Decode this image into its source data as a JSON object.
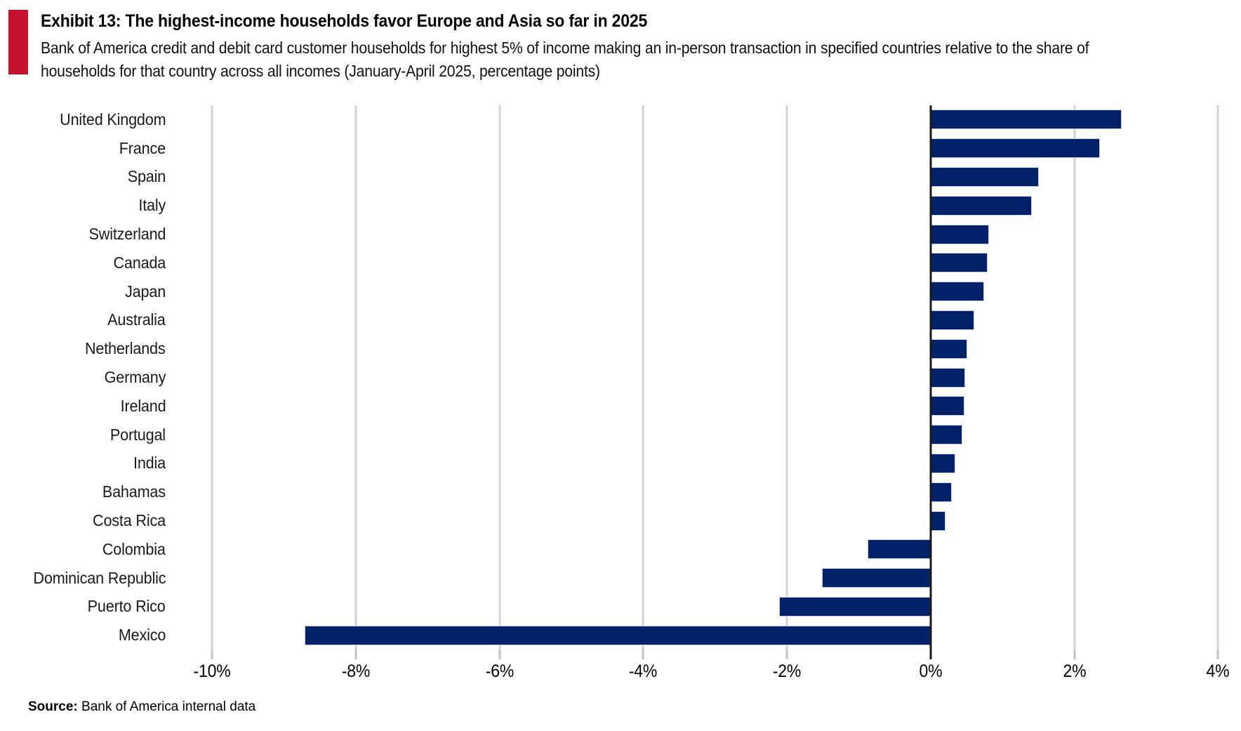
{
  "accent_color": "#c41230",
  "chart_data": {
    "type": "bar",
    "orientation": "horizontal",
    "title": "Exhibit 13: The highest-income households favor Europe and Asia so far in 2025",
    "subtitle": "Bank of America credit and debit card customer households for highest 5% of income making an in-person transaction in specified countries relative to the share of households for that country across all incomes (January-April 2025, percentage points)",
    "categories": [
      "United Kingdom",
      "France",
      "Spain",
      "Italy",
      "Switzerland",
      "Canada",
      "Japan",
      "Australia",
      "Netherlands",
      "Germany",
      "Ireland",
      "Portugal",
      "India",
      "Bahamas",
      "Costa Rica",
      "Colombia",
      "Dominican Republic",
      "Puerto Rico",
      "Mexico"
    ],
    "values": [
      2.65,
      2.35,
      1.5,
      1.4,
      0.8,
      0.78,
      0.73,
      0.6,
      0.5,
      0.47,
      0.46,
      0.43,
      0.33,
      0.29,
      0.2,
      -0.87,
      -1.5,
      -2.1,
      -8.7
    ],
    "unit": "percentage points",
    "xlabel": "",
    "ylabel": "",
    "x_tick_labels": [
      "-10%",
      "-8%",
      "-6%",
      "-4%",
      "-2%",
      "0%",
      "2%",
      "4%"
    ],
    "x_tick_values": [
      -10,
      -8,
      -6,
      -4,
      -2,
      0,
      2,
      4
    ],
    "xlim_edges": [
      -10.51,
      4.32
    ],
    "grid": "vertical",
    "legend": "none",
    "bar_color": "#012169",
    "gridline_color": "#d2d2d2",
    "zero_line_color": "#1a1a1a",
    "tick_color": "#c0c0c0"
  },
  "footer": {
    "source_label": "Source:",
    "source_text": " Bank of America internal data"
  }
}
